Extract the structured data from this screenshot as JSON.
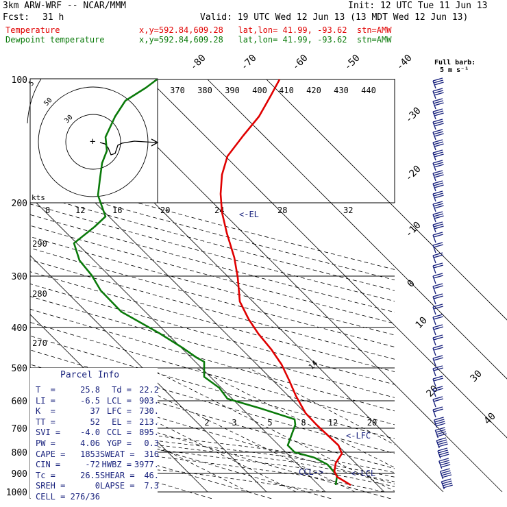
{
  "header": {
    "model": "3km ARW-WRF -- NCAR/MMM",
    "init": "Init: 12 UTC Tue 11 Jun 13",
    "fcst_label": "Fcst:",
    "fcst_value": "31 h",
    "valid": "Valid: 19 UTC Wed 12 Jun 13 (13 MDT Wed 12 Jun 13)",
    "temp_label": "Temperature",
    "temp_loc": "x,y=592.84,609.28   lat,lon= 41.99, -93.62  stn=AMW",
    "dew_label": "Dewpoint temperature",
    "dew_loc": "x,y=592.84,609.28   lat,lon= 41.99, -93.62  stn=AMW",
    "barb_title": "Full barb:",
    "barb_units": "5 m s⁻¹"
  },
  "chart_data": {
    "type": "line",
    "pressure_levels": [
      100,
      200,
      300,
      400,
      500,
      600,
      700,
      800,
      900,
      1000
    ],
    "temp_isotherm_labels": [
      "-80",
      "-70",
      "-60",
      "-50",
      "-40",
      "-30",
      "-20",
      "-10",
      "0",
      "10",
      "20",
      "30",
      "40"
    ],
    "theta_labels": [
      "370",
      "380",
      "390",
      "400",
      "410",
      "420",
      "430",
      "440"
    ],
    "theta_low_labels": [
      "290",
      "280",
      "270"
    ],
    "mixing_ratio_labels": [
      "2",
      "3",
      "5",
      "8",
      "12",
      "20"
    ],
    "hodo_speed_labels": [
      "8",
      "12",
      "16",
      "20",
      "24",
      "28",
      "32"
    ],
    "hodo_ring_labels": [
      "5",
      "50",
      "30"
    ],
    "hodo_units": "kts",
    "markers": {
      "el": "<-EL",
      "lfc": "<-LFC",
      "lcl": "<-LCL",
      "ccl": "CCL->",
      "mixing_ratio_mark": "14"
    },
    "series": [
      {
        "name": "Temperature",
        "color": "#e00000",
        "points": [
          [
            -48,
            100
          ],
          [
            -50,
            130
          ],
          [
            -51,
            160
          ],
          [
            -54,
            190
          ],
          [
            -56,
            220
          ],
          [
            -58,
            250
          ],
          [
            -57,
            280
          ],
          [
            -56,
            310
          ],
          [
            -53,
            350
          ],
          [
            -48,
            400
          ],
          [
            -41,
            450
          ],
          [
            -34,
            500
          ],
          [
            -26,
            550
          ],
          [
            -18,
            600
          ],
          [
            -9,
            650
          ],
          [
            0,
            700
          ],
          [
            8,
            750
          ],
          [
            12,
            800
          ],
          [
            14,
            850
          ],
          [
            19,
            900
          ],
          [
            23,
            950
          ],
          [
            27,
            1000
          ]
        ],
        "screen_fallback": true
      },
      {
        "name": "Dewpoint temperature",
        "color": "#0a7a0a",
        "screen_fallback": true
      }
    ]
  },
  "parcel": {
    "title": "Parcel Info",
    "rows": [
      [
        "T  =",
        "25.8",
        "Td =",
        "22.2"
      ],
      [
        "LI =",
        "-6.5",
        "LCL =",
        "903."
      ],
      [
        "K  =",
        "37",
        "LFC =",
        "730."
      ],
      [
        "TT =",
        "52",
        "EL =",
        "213."
      ],
      [
        "SVI =",
        "-4.0",
        "CCL =",
        "895."
      ],
      [
        "PW =",
        "4.06",
        "YGP =",
        "0.3"
      ],
      [
        "CAPE =",
        "1853",
        "SWEAT =",
        "316"
      ],
      [
        "CIN =",
        "-72",
        "HWBZ =",
        "3977."
      ],
      [
        "Tc =",
        "26.5",
        "SHEAR =",
        "46."
      ],
      [
        "SREH =",
        "0",
        "LAPSE =",
        "7.3"
      ],
      [
        "CELL =",
        "276/36",
        "",
        ""
      ]
    ]
  }
}
